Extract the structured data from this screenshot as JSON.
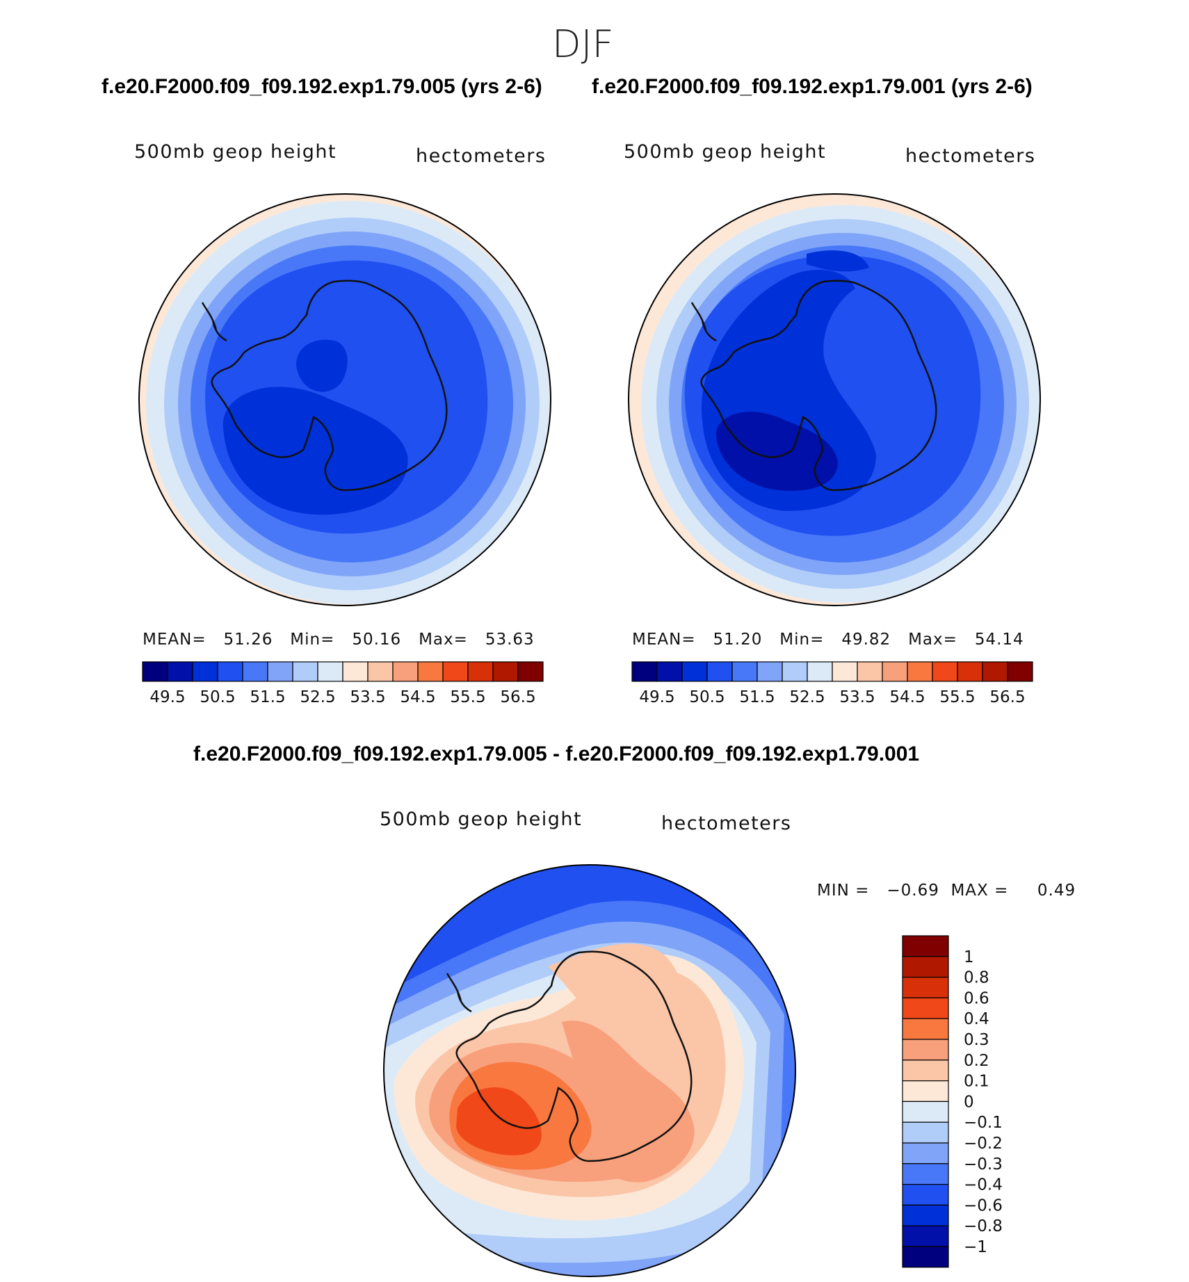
{
  "figure": {
    "season": "DJF",
    "case_titles": [
      "f.e20.F2000.f09_f09.192.exp1.79.005 (yrs 2-6)",
      "f.e20.F2000.f09_f09.192.exp1.79.001 (yrs 2-6)"
    ],
    "diff_title": "f.e20.F2000.f09_f09.192.exp1.79.005 - f.e20.F2000.f09_f09.192.exp1.79.001"
  },
  "panels": [
    {
      "variable": "500mb geop height",
      "units": "hectometers",
      "stats_text": "MEAN=   51.26   Min=   50.16   Max=   53.63",
      "mean": 51.26,
      "min": 50.16,
      "max": 53.63
    },
    {
      "variable": "500mb geop height",
      "units": "hectometers",
      "stats_text": "MEAN=   51.20   Min=   49.82   Max=   54.14",
      "mean": 51.2,
      "min": 49.82,
      "max": 54.14
    },
    {
      "variable": "500mb geop height",
      "units": "hectometers",
      "stats_text": "MIN =   −0.69  MAX =     0.49",
      "min": -0.69,
      "max": 0.49
    }
  ],
  "colorbar_main": {
    "labels": [
      "49.5",
      "50.5",
      "51.5",
      "52.5",
      "53.5",
      "54.5",
      "55.5",
      "56.5"
    ],
    "colors": [
      "#00007e",
      "#0010a8",
      "#0030d8",
      "#2050f0",
      "#4878f8",
      "#80a4f8",
      "#b0ccf8",
      "#dceaf8",
      "#fde8d8",
      "#fbc6a8",
      "#f8a07c",
      "#f87840",
      "#f04818",
      "#d83008",
      "#b01800",
      "#800000"
    ]
  },
  "colorbar_diff": {
    "labels": [
      "1",
      "0.8",
      "0.6",
      "0.4",
      "0.3",
      "0.2",
      "0.1",
      "0",
      "−0.1",
      "−0.2",
      "−0.3",
      "−0.4",
      "−0.6",
      "−0.8",
      "−1"
    ],
    "colors": [
      "#800000",
      "#b01800",
      "#d83008",
      "#f04818",
      "#f87840",
      "#f8a07c",
      "#fbc6a8",
      "#fde8d8",
      "#dceaf8",
      "#b0ccf8",
      "#80a4f8",
      "#4878f8",
      "#2050f0",
      "#0030d8",
      "#0010a8",
      "#00007e"
    ]
  }
}
